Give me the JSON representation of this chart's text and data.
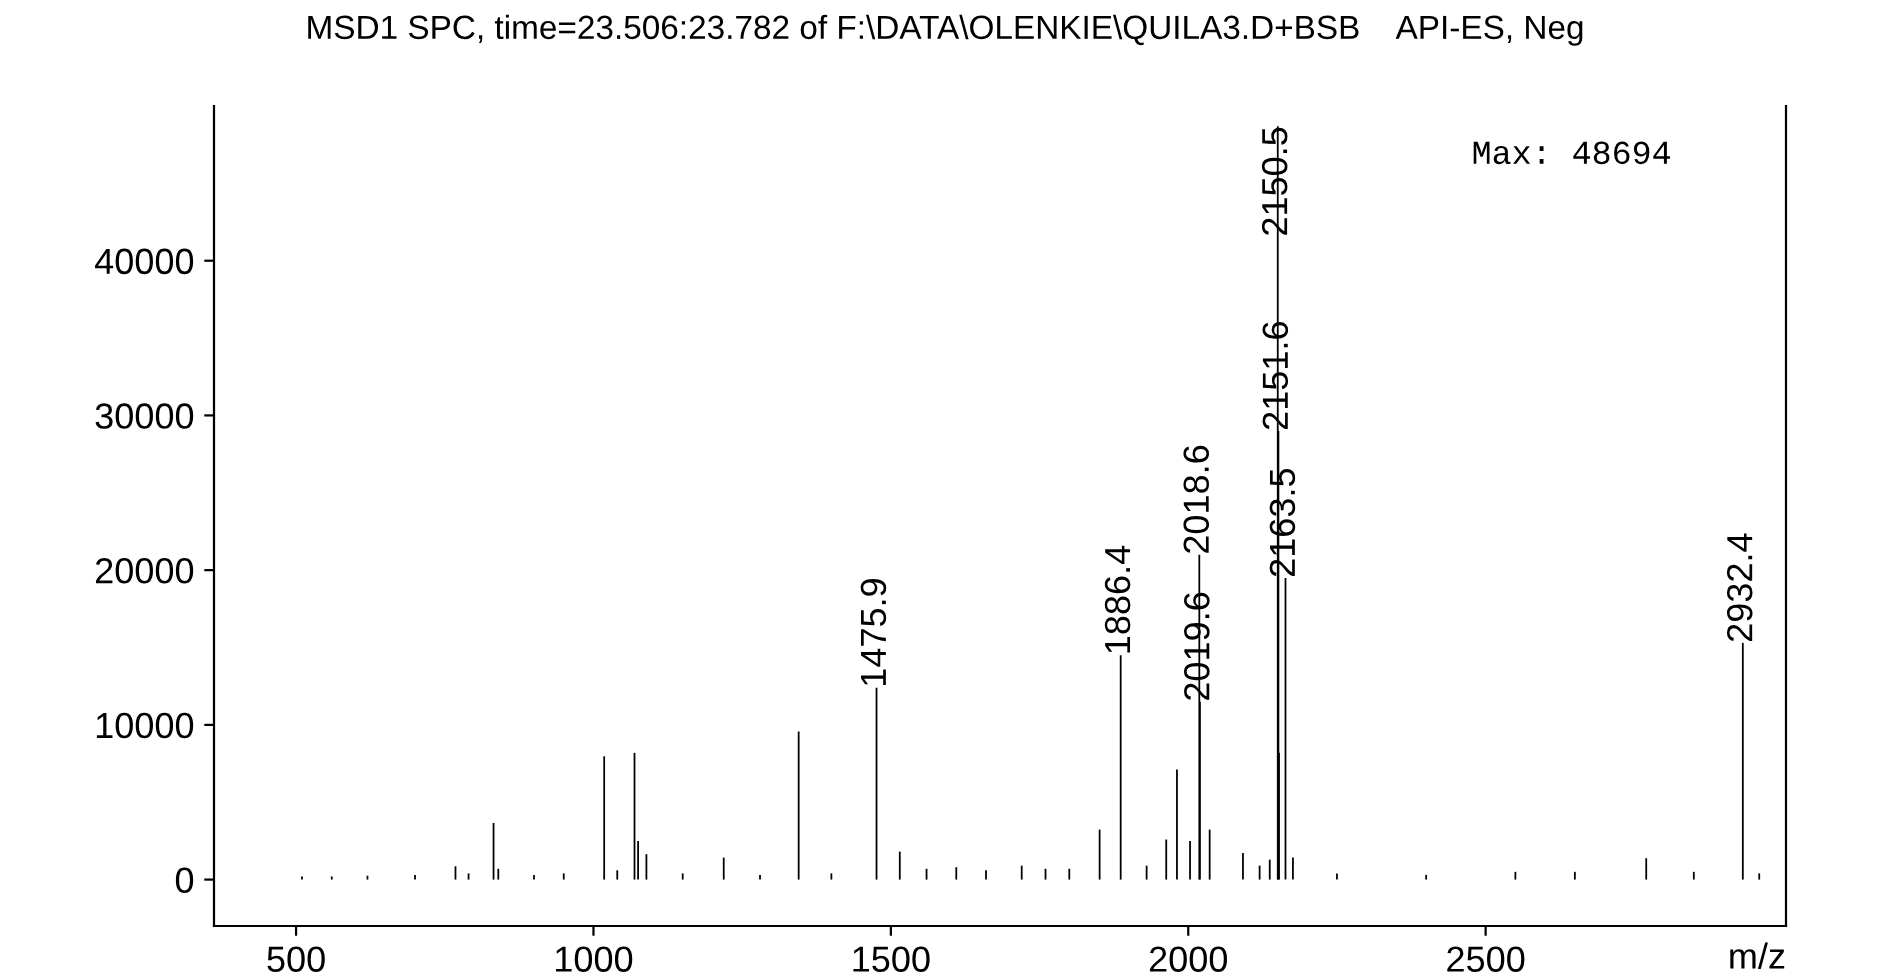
{
  "chart_data": {
    "type": "bar",
    "title": "MSD1 SPC, time=23.506:23.782 of F:\\DATA\\OLENKIE\\QUILA3.D+BSB    API-ES, Neg",
    "xlabel": "m/z",
    "x": [
      510,
      560,
      620,
      700,
      768,
      790,
      832,
      840,
      900,
      950,
      1018,
      1040,
      1069,
      1075,
      1089,
      1150,
      1219,
      1280,
      1345,
      1400,
      1475.9,
      1515,
      1560,
      1610,
      1660,
      1720,
      1760,
      1800,
      1851,
      1886.4,
      1930,
      1963,
      1981,
      2003,
      2018.6,
      2019.6,
      2036,
      2092,
      2120,
      2137,
      2150.5,
      2151.6,
      2152.6,
      2163.5,
      2176,
      2250,
      2400,
      2550,
      2650,
      2770,
      2850,
      2932.4,
      2960
    ],
    "values": [
      200,
      200,
      250,
      300,
      860,
      400,
      3660,
      700,
      300,
      400,
      7970,
      600,
      8190,
      2500,
      1640,
      400,
      1420,
      300,
      9570,
      400,
      12400,
      1810,
      700,
      800,
      600,
      900,
      700,
      700,
      3230,
      14500,
      900,
      2590,
      7110,
      2500,
      21000,
      11500,
      3230,
      1720,
      900,
      1290,
      48694,
      29000,
      8190,
      19500,
      1420,
      400,
      300,
      500,
      500,
      1380,
      500,
      15300,
      400
    ],
    "color": "#000000",
    "xlim": [
      362,
      3005
    ],
    "ylim": [
      -3000,
      50000
    ],
    "xticks": [
      500,
      1000,
      1500,
      2000,
      2500
    ],
    "yticks": [
      0,
      10000,
      20000,
      30000,
      40000
    ],
    "annotations": [
      {
        "text": "1475.9",
        "x": 1475.9,
        "y": 12400
      },
      {
        "text": "1886.4",
        "x": 1886.4,
        "y": 14500
      },
      {
        "text": "2018.6",
        "x": 2018.6,
        "y": 21000
      },
      {
        "text": "2019.6",
        "x": 2019.6,
        "y": 11500
      },
      {
        "text": "2150.5",
        "x": 2150.5,
        "y": 48694
      },
      {
        "text": "2151.6",
        "x": 2151.6,
        "y": 29000
      },
      {
        "text": "2163.5",
        "x": 2163.5,
        "y": 19500
      },
      {
        "text": "2932.4",
        "x": 2932.4,
        "y": 15300
      },
      "Max: 48694"
    ],
    "grid": false
  }
}
